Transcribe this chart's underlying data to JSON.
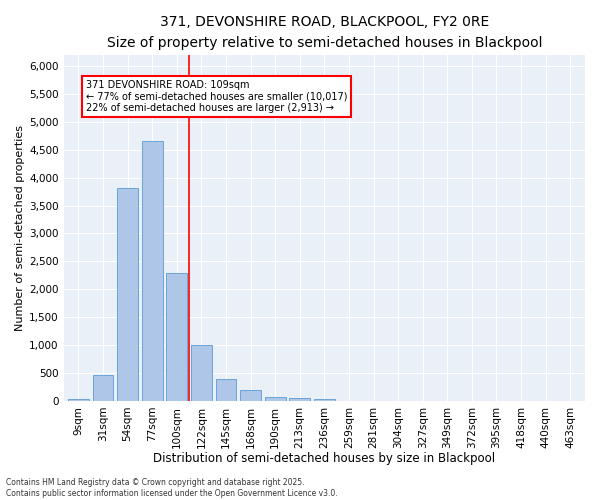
{
  "title1": "371, DEVONSHIRE ROAD, BLACKPOOL, FY2 0RE",
  "title2": "Size of property relative to semi-detached houses in Blackpool",
  "xlabel": "Distribution of semi-detached houses by size in Blackpool",
  "ylabel": "Number of semi-detached properties",
  "categories": [
    "9sqm",
    "31sqm",
    "54sqm",
    "77sqm",
    "100sqm",
    "122sqm",
    "145sqm",
    "168sqm",
    "190sqm",
    "213sqm",
    "236sqm",
    "259sqm",
    "281sqm",
    "304sqm",
    "327sqm",
    "349sqm",
    "372sqm",
    "395sqm",
    "418sqm",
    "440sqm",
    "463sqm"
  ],
  "values": [
    30,
    460,
    3820,
    4650,
    2300,
    1000,
    400,
    195,
    75,
    55,
    40,
    0,
    0,
    0,
    0,
    0,
    0,
    0,
    0,
    0,
    0
  ],
  "bar_color": "#aec6e8",
  "bar_edge_color": "#5b9bd5",
  "vline_x_idx": 4,
  "vline_color": "red",
  "annotation_title": "371 DEVONSHIRE ROAD: 109sqm",
  "annotation_line1": "← 77% of semi-detached houses are smaller (10,017)",
  "annotation_line2": "22% of semi-detached houses are larger (2,913) →",
  "annotation_box_color": "white",
  "annotation_box_edge": "red",
  "ylim": [
    0,
    6200
  ],
  "yticks": [
    0,
    500,
    1000,
    1500,
    2000,
    2500,
    3000,
    3500,
    4000,
    4500,
    5000,
    5500,
    6000
  ],
  "bg_color": "#eaf0f8",
  "fig_bg_color": "#ffffff",
  "footnote": "Contains HM Land Registry data © Crown copyright and database right 2025.\nContains public sector information licensed under the Open Government Licence v3.0.",
  "title1_fontsize": 10,
  "title2_fontsize": 9,
  "xlabel_fontsize": 8.5,
  "ylabel_fontsize": 8,
  "tick_fontsize": 7.5,
  "annot_fontsize": 7,
  "footnote_fontsize": 5.5
}
